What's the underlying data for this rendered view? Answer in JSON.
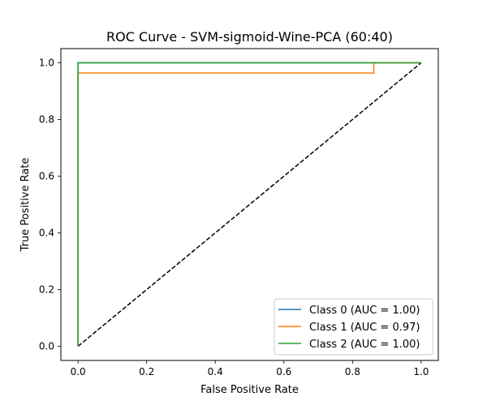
{
  "chart_data": {
    "type": "line",
    "title": "ROC Curve - SVM-sigmoid-Wine-PCA (60:40)",
    "xlabel": "False Positive Rate",
    "ylabel": "True Positive Rate",
    "xlim": [
      -0.05,
      1.05
    ],
    "ylim": [
      -0.05,
      1.05
    ],
    "xticks": [
      0.0,
      0.2,
      0.4,
      0.6,
      0.8,
      1.0
    ],
    "yticks": [
      0.0,
      0.2,
      0.4,
      0.6,
      0.8,
      1.0
    ],
    "xtick_labels": [
      "0.0",
      "0.2",
      "0.4",
      "0.6",
      "0.8",
      "1.0"
    ],
    "ytick_labels": [
      "0.0",
      "0.2",
      "0.4",
      "0.6",
      "0.8",
      "1.0"
    ],
    "grid": false,
    "legend_position": "lower-right",
    "series": [
      {
        "name": "Class 0 (AUC = 1.00)",
        "color": "#1f77b4",
        "x": [
          0.0,
          0.0,
          0.0,
          1.0
        ],
        "y": [
          0.0,
          0.0,
          1.0,
          1.0
        ]
      },
      {
        "name": "Class 1 (AUC = 0.97)",
        "color": "#ff7f0e",
        "x": [
          0.0,
          0.0,
          0.0,
          0.0,
          0.862,
          0.862,
          1.0
        ],
        "y": [
          0.0,
          0.0,
          0.0,
          0.964,
          0.964,
          1.0,
          1.0
        ]
      },
      {
        "name": "Class 2 (AUC = 1.00)",
        "color": "#2ca02c",
        "x": [
          0.0,
          0.0,
          0.0,
          1.0
        ],
        "y": [
          0.0,
          0.0,
          1.0,
          1.0
        ]
      }
    ],
    "reference_line": {
      "x": [
        0.0,
        1.0
      ],
      "y": [
        0.0,
        1.0
      ],
      "color": "#000000",
      "style": "dashed"
    }
  }
}
